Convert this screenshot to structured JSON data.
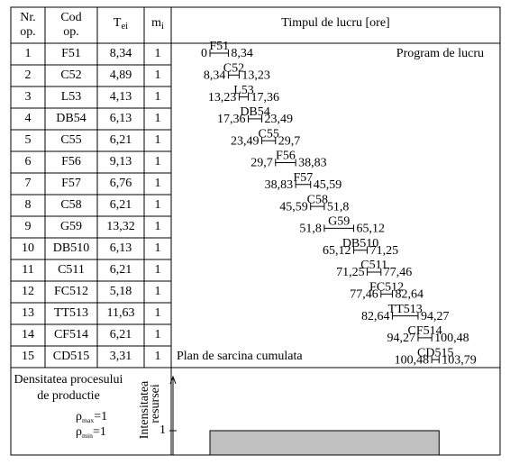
{
  "header": {
    "nr": "Nr. op.",
    "cod": "Cod op.",
    "tei": {
      "main": "T",
      "sub": "ei"
    },
    "mi": {
      "main": "m",
      "sub": "i"
    },
    "time": "Timpul de lucru [ore]"
  },
  "program_label": "Program de lucru",
  "cumulative_label": "Plan de sarcina cumulata",
  "ops": [
    {
      "nr": "1",
      "code": "F51",
      "tei": "8,34",
      "mi": "1",
      "start": {
        "value": 0,
        "label": "0"
      },
      "end": {
        "value": 8.34,
        "label": "8,34"
      }
    },
    {
      "nr": "2",
      "code": "C52",
      "tei": "4,89",
      "mi": "1",
      "start": {
        "value": 8.34,
        "label": "8,34"
      },
      "end": {
        "value": 13.23,
        "label": "13,23"
      }
    },
    {
      "nr": "3",
      "code": "L53",
      "tei": "4,13",
      "mi": "1",
      "start": {
        "value": 13.23,
        "label": "13,23"
      },
      "end": {
        "value": 17.36,
        "label": "17,36"
      }
    },
    {
      "nr": "4",
      "code": "DB54",
      "tei": "6,13",
      "mi": "1",
      "start": {
        "value": 17.36,
        "label": "17,36"
      },
      "end": {
        "value": 23.49,
        "label": "23,49"
      }
    },
    {
      "nr": "5",
      "code": "C55",
      "tei": "6,21",
      "mi": "1",
      "start": {
        "value": 23.49,
        "label": "23,49"
      },
      "end": {
        "value": 29.7,
        "label": "29,7"
      }
    },
    {
      "nr": "6",
      "code": "F56",
      "tei": "9,13",
      "mi": "1",
      "start": {
        "value": 29.7,
        "label": "29,7"
      },
      "end": {
        "value": 38.83,
        "label": "38,83"
      }
    },
    {
      "nr": "7",
      "code": "F57",
      "tei": "6,76",
      "mi": "1",
      "start": {
        "value": 38.83,
        "label": "38,83"
      },
      "end": {
        "value": 45.59,
        "label": "45,59"
      }
    },
    {
      "nr": "8",
      "code": "C58",
      "tei": "6,21",
      "mi": "1",
      "start": {
        "value": 45.59,
        "label": "45,59"
      },
      "end": {
        "value": 51.8,
        "label": "51,8"
      }
    },
    {
      "nr": "9",
      "code": "G59",
      "tei": "13,32",
      "mi": "1",
      "start": {
        "value": 51.8,
        "label": "51,8"
      },
      "end": {
        "value": 65.12,
        "label": "65,12"
      }
    },
    {
      "nr": "10",
      "code": "DB510",
      "tei": "6,13",
      "mi": "1",
      "start": {
        "value": 65.12,
        "label": "65,12"
      },
      "end": {
        "value": 71.25,
        "label": "71,25"
      }
    },
    {
      "nr": "11",
      "code": "C511",
      "tei": "6,21",
      "mi": "1",
      "start": {
        "value": 71.25,
        "label": "71,25"
      },
      "end": {
        "value": 77.46,
        "label": "77,46"
      }
    },
    {
      "nr": "12",
      "code": "FC512",
      "tei": "5,18",
      "mi": "1",
      "start": {
        "value": 77.46,
        "label": "77,46"
      },
      "end": {
        "value": 82.64,
        "label": "82,64"
      }
    },
    {
      "nr": "13",
      "code": "TT513",
      "tei": "11,63",
      "mi": "1",
      "start": {
        "value": 82.64,
        "label": "82,64"
      },
      "end": {
        "value": 94.27,
        "label": "94,27"
      }
    },
    {
      "nr": "14",
      "code": "CF514",
      "tei": "6,21",
      "mi": "1",
      "start": {
        "value": 94.27,
        "label": "94,27"
      },
      "end": {
        "value": 100.48,
        "label": "100,48"
      }
    },
    {
      "nr": "15",
      "code": "CD515",
      "tei": "3,31",
      "mi": "1",
      "start": {
        "value": 100.48,
        "label": "100,48"
      },
      "end": {
        "value": 103.79,
        "label": "103,79"
      }
    }
  ],
  "density": {
    "title_line1": "Densitatea procesului",
    "title_line2": "de productie",
    "rho_max": {
      "main": "ρ",
      "sub": "max",
      "rest": "=1"
    },
    "rho_min": {
      "main": "ρ",
      "sub": "min",
      "rest": "=1"
    },
    "axis_label_line1": "Intensitatea",
    "axis_label_line2": "resursei",
    "tick": {
      "value": 1,
      "label": "1"
    },
    "level": 1
  }
}
